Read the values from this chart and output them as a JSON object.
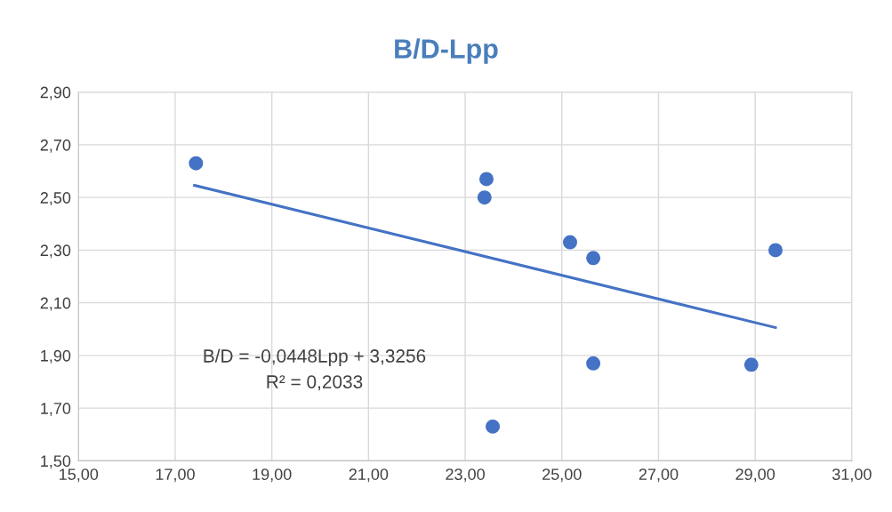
{
  "chart_data": {
    "type": "scatter",
    "title": "B/D-Lpp",
    "series": [
      {
        "color": "#4472c4",
        "marker": "circle",
        "x": [
          17.43,
          23.44,
          23.4,
          25.17,
          25.65,
          29.42,
          25.65,
          28.92,
          23.57
        ],
        "values": [
          2.63,
          2.57,
          2.5,
          2.33,
          2.27,
          2.3,
          1.87,
          1.865,
          1.63
        ]
      },
      {
        "type": "line",
        "color": "#4472c4",
        "marker": "none",
        "line_style": "solid",
        "x": [
          17.4,
          29.42
        ],
        "values": [
          2.546,
          2.006
        ]
      }
    ],
    "xlim": [
      15,
      31
    ],
    "xticks": [
      {
        "value": 15,
        "label": "15,00"
      },
      {
        "value": 17,
        "label": "17,00"
      },
      {
        "value": 19,
        "label": "19,00"
      },
      {
        "value": 21,
        "label": "21,00"
      },
      {
        "value": 23,
        "label": "23,00"
      },
      {
        "value": 25,
        "label": "25,00"
      },
      {
        "value": 27,
        "label": "27,00"
      },
      {
        "value": 29,
        "label": "29,00"
      },
      {
        "value": 31,
        "label": "31,00"
      }
    ],
    "ylim": [
      1.5,
      2.9
    ],
    "yticks": [
      {
        "value": 1.5,
        "label": "1,50"
      },
      {
        "value": 1.7,
        "label": "1,70"
      },
      {
        "value": 1.9,
        "label": "1,90"
      },
      {
        "value": 2.1,
        "label": "2,10"
      },
      {
        "value": 2.3,
        "label": "2,30"
      },
      {
        "value": 2.5,
        "label": "2,50"
      },
      {
        "value": 2.7,
        "label": "2,70"
      },
      {
        "value": 2.9,
        "label": "2,90"
      }
    ],
    "grid": true,
    "annotations": [
      "B/D = -0,0448Lpp + 3,3256",
      "R² = 0,2033"
    ]
  }
}
